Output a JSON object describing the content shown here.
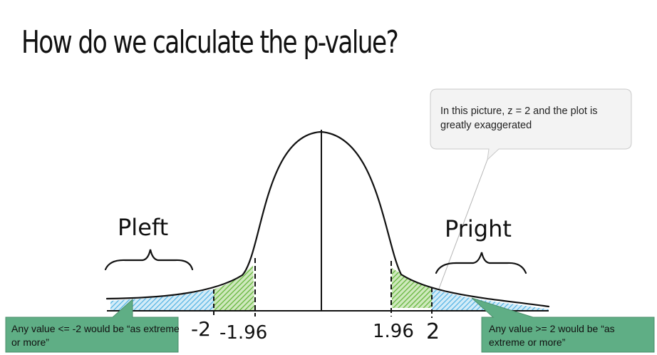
{
  "title": "How do we calculate the p-value?",
  "callout": "In this picture, z = 2 and the plot is greatly exaggerated",
  "labels": {
    "p_left": "Pleft",
    "p_right": "Pright",
    "neg_2": "-2",
    "neg_1_96": "-1.96",
    "pos_1_96": "1.96",
    "pos_2": "2"
  },
  "notes": {
    "left": "Any value <= -2 would be “as extreme or more”",
    "right": "Any value >= 2 would be “as extreme or more”"
  },
  "colors": {
    "tail_fill": "#5cb8e6",
    "critical_fill": "#6cbd45",
    "note_bg": "#5fae85",
    "callout_bg": "#f3f3f3"
  }
}
